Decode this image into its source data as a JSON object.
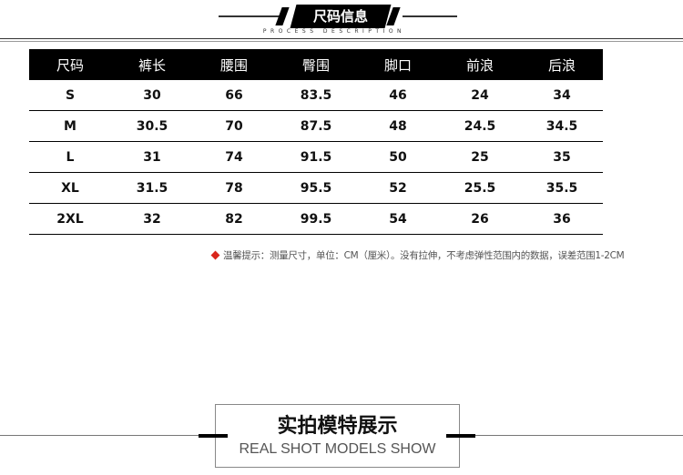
{
  "header": {
    "title": "尺码信息",
    "subtitle": "PROCESS DESCRIPTION"
  },
  "table": {
    "columns": [
      "尺码",
      "裤长",
      "腰围",
      "臀围",
      "脚口",
      "前浪",
      "后浪"
    ],
    "rows": [
      [
        "S",
        30,
        66,
        83.5,
        46,
        24,
        34
      ],
      [
        "M",
        30.5,
        70,
        87.5,
        48,
        24.5,
        34.5
      ],
      [
        "L",
        31,
        74,
        91.5,
        50,
        25,
        35
      ],
      [
        "XL",
        31.5,
        78,
        95.5,
        52,
        25.5,
        35.5
      ],
      [
        "2XL",
        32,
        82,
        99.5,
        54,
        26,
        36
      ]
    ]
  },
  "note": "温馨提示：测量尺寸，单位：CM（厘米）。没有拉伸，不考虑弹性范围内的数据，误差范围1-2CM",
  "footer": {
    "title": "实拍模特展示",
    "subtitle": "REAL SHOT MODELS SHOW"
  }
}
